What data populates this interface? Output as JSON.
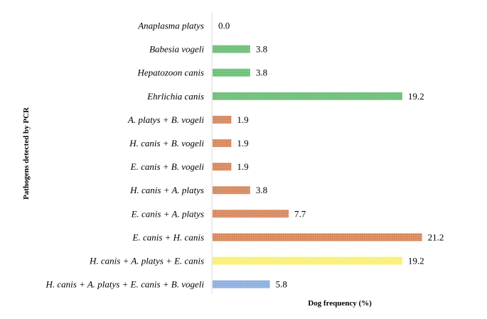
{
  "chart_data": {
    "type": "bar",
    "orientation": "horizontal",
    "xlabel": "Dog frequency (%)",
    "ylabel": "Pathogens detected by PCR",
    "grid": false,
    "categories": [
      "Anaplasma platys",
      "Babesia vogeli",
      "Hepatozoon canis",
      "Ehrlichia canis",
      "A. platys + B. vogeli",
      "H. canis + B. vogeli",
      "E. canis + B. vogeli",
      "H. canis + A. platys",
      "E. canis + A. platys",
      "E. canis + H. canis",
      "H. canis + A. platys + E. canis",
      "H. canis + A. platys + E. canis + B. vogeli"
    ],
    "values": [
      0.0,
      3.8,
      3.8,
      19.2,
      1.9,
      1.9,
      1.9,
      3.8,
      7.7,
      21.2,
      19.2,
      5.8
    ],
    "value_labels": [
      "0.0",
      "3.8",
      "3.8",
      "19.2",
      "1.9",
      "1.9",
      "1.9",
      "3.8",
      "7.7",
      "21.2",
      "19.2",
      "5.8"
    ],
    "bar_colors": [
      "#6fc07a",
      "#6fc07a",
      "#6fc07a",
      "#6fc07a",
      "#d98a5f",
      "#d98a5f",
      "#d98a5f",
      "#d98a5f",
      "#d98a5f",
      "#d98a5f",
      "#f7f07a",
      "#8fb0e0"
    ]
  }
}
